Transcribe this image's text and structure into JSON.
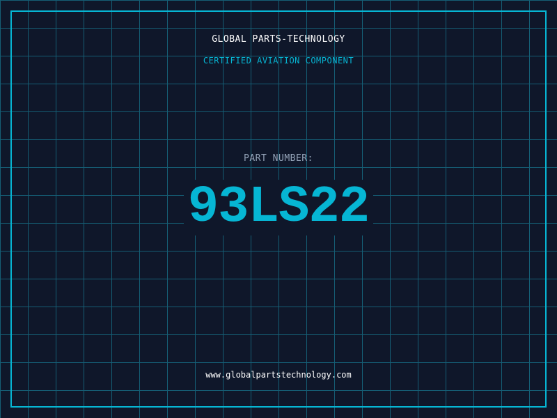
{
  "header": {
    "company": "GLOBAL PARTS-TECHNOLOGY",
    "subtitle": "CERTIFIED AVIATION COMPONENT"
  },
  "part": {
    "label": "PART NUMBER:",
    "number": "93LS22"
  },
  "footer": {
    "url": "www.globalpartstechnology.com"
  },
  "colors": {
    "background": "#0f172a",
    "accent": "#06b6d4",
    "grid": "#155e75"
  }
}
